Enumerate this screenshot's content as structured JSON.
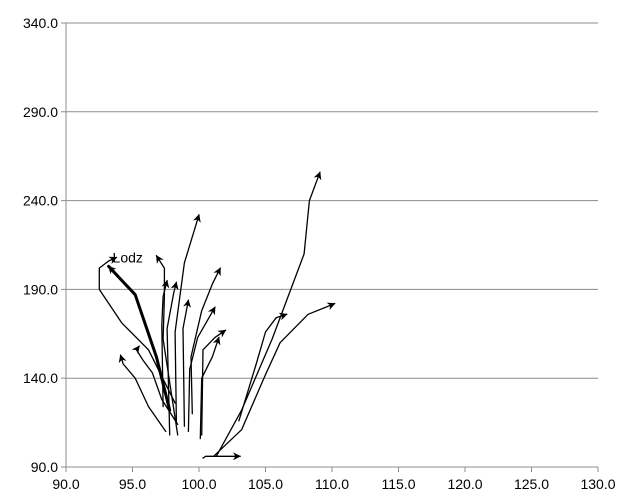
{
  "chart_data": {
    "type": "line",
    "title": "",
    "xlabel": "",
    "ylabel": "",
    "xlim": [
      90,
      130
    ],
    "ylim": [
      90,
      340
    ],
    "x_ticks": [
      90,
      95,
      100,
      105,
      110,
      115,
      120,
      125,
      130
    ],
    "y_ticks": [
      90,
      140,
      190,
      240,
      290,
      340
    ],
    "x_tick_labels": [
      "90.0",
      "95.0",
      "100.0",
      "105.0",
      "110.0",
      "115.0",
      "120.0",
      "125.0",
      "130.0"
    ],
    "y_tick_labels": [
      "90.0",
      "140.0",
      "190.0",
      "240.0",
      "290.0",
      "340.0"
    ],
    "grid": "horizontal",
    "legend": "none",
    "line_color": "#000000",
    "annotations": [
      {
        "text": "Lodz",
        "x": 93.5,
        "y": 208
      }
    ],
    "series": [
      {
        "highlighted": true,
        "points": [
          [
            97.8,
            122
          ],
          [
            96.8,
            152
          ],
          [
            95.2,
            187
          ],
          [
            93.2,
            203
          ]
        ]
      },
      {
        "points": [
          [
            98.2,
            126
          ],
          [
            96.2,
            156
          ],
          [
            94.2,
            171
          ],
          [
            92.5,
            190
          ],
          [
            92.5,
            202
          ],
          [
            93.2,
            206
          ],
          [
            93.8,
            208
          ]
        ]
      },
      {
        "points": [
          [
            97.5,
            110
          ],
          [
            96.2,
            124
          ],
          [
            95.2,
            140
          ],
          [
            94.3,
            148
          ],
          [
            94.1,
            153
          ]
        ]
      },
      {
        "points": [
          [
            98.4,
            114
          ],
          [
            97.2,
            128
          ],
          [
            96.5,
            143
          ],
          [
            95.8,
            150
          ],
          [
            95.3,
            156
          ],
          [
            95.5,
            158
          ]
        ]
      },
      {
        "points": [
          [
            97.3,
            124
          ],
          [
            97.2,
            170
          ],
          [
            97.3,
            186
          ],
          [
            97.6,
            195
          ]
        ]
      },
      {
        "points": [
          [
            98.4,
            108
          ],
          [
            97.3,
            162
          ],
          [
            97.4,
            186
          ],
          [
            97.4,
            202
          ],
          [
            96.8,
            209
          ]
        ]
      },
      {
        "points": [
          [
            97.8,
            108
          ],
          [
            97.6,
            168
          ],
          [
            98.1,
            188
          ],
          [
            98.3,
            194
          ]
        ]
      },
      {
        "points": [
          [
            98.9,
            113
          ],
          [
            98.8,
            168
          ],
          [
            99.2,
            184
          ]
        ]
      },
      {
        "points": [
          [
            98.3,
            115
          ],
          [
            98.2,
            166
          ],
          [
            98.9,
            205
          ],
          [
            100.0,
            232
          ]
        ]
      },
      {
        "points": [
          [
            99.2,
            110
          ],
          [
            99.3,
            145
          ],
          [
            99.9,
            163
          ],
          [
            101.2,
            180
          ]
        ]
      },
      {
        "points": [
          [
            99.5,
            120
          ],
          [
            99.4,
            152
          ],
          [
            100.2,
            178
          ],
          [
            101.0,
            193
          ],
          [
            101.6,
            202
          ]
        ]
      },
      {
        "points": [
          [
            100.1,
            106
          ],
          [
            100.2,
            140
          ],
          [
            101.0,
            152
          ],
          [
            101.5,
            163
          ]
        ]
      },
      {
        "points": [
          [
            100.2,
            108
          ],
          [
            100.3,
            156
          ],
          [
            101.2,
            163
          ],
          [
            102.0,
            167
          ]
        ]
      },
      {
        "points": [
          [
            100.3,
            95
          ],
          [
            100.5,
            96
          ],
          [
            101.8,
            96
          ],
          [
            103.1,
            96
          ]
        ]
      },
      {
        "points": [
          [
            101.1,
            96
          ],
          [
            103.2,
            111
          ],
          [
            105.0,
            142
          ],
          [
            106.1,
            160
          ],
          [
            108.2,
            176
          ],
          [
            110.2,
            182
          ]
        ]
      },
      {
        "points": [
          [
            103.0,
            116
          ],
          [
            104.3,
            148
          ],
          [
            105.0,
            166
          ],
          [
            105.8,
            174
          ],
          [
            106.6,
            176
          ]
        ]
      },
      {
        "points": [
          [
            101.3,
            96
          ],
          [
            103.2,
            122
          ],
          [
            105.5,
            162
          ],
          [
            107.9,
            210
          ],
          [
            108.3,
            240
          ],
          [
            109.1,
            256
          ]
        ]
      }
    ]
  }
}
